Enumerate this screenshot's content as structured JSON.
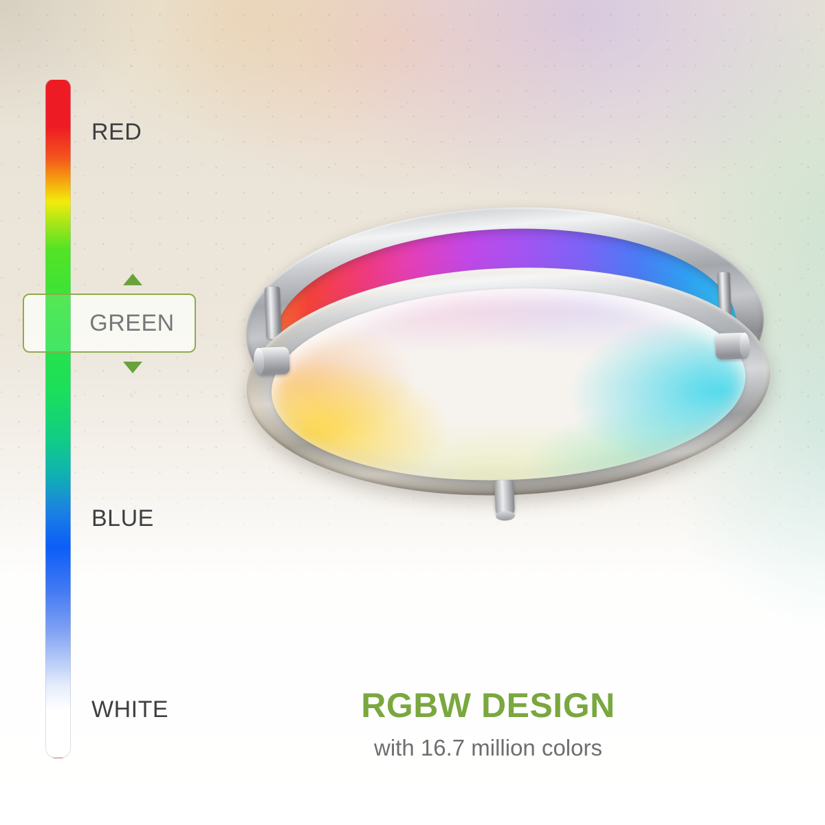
{
  "scale": {
    "red_label": "RED",
    "green_label": "GREEN",
    "blue_label": "BLUE",
    "white_label": "WHITE",
    "selected": "GREEN",
    "label_color": "#3e3f41",
    "selected_label_color": "#76777a",
    "selector_border_color": "#8cab4b",
    "arrow_color": "#69a23b",
    "bar_gradient": [
      "#ed1c24",
      "#f4541d",
      "#f59a10",
      "#f3ec0c",
      "#54e325",
      "#2ce343",
      "#1bdf5b",
      "#10cd85",
      "#0fb3b0",
      "#0c5ef7",
      "#3f78f3",
      "#7d9ff3",
      "#ffffff"
    ]
  },
  "fixture": {
    "name": "rgbw-led-flush-mount-ceiling-light",
    "metal_color": "#c6c8cc",
    "rgb_band_gradient": [
      "#fe7733",
      "#f44238",
      "#ef3a7d",
      "#e33fb9",
      "#c148e8",
      "#a155f2",
      "#7d63f7",
      "#4a7cf5",
      "#2f9ff2",
      "#2fc9ec"
    ],
    "diffuser_glow_colors": [
      "#ffd638",
      "#faa55f",
      "#f0c6e1",
      "#cdc3f5",
      "#37d6eb",
      "#6ee1aa",
      "#e1eb96"
    ]
  },
  "caption": {
    "title": "RGBW DESIGN",
    "subtitle": "with 16.7 million colors",
    "title_color": "#7aa73f",
    "subtitle_color": "#6d6e70"
  }
}
